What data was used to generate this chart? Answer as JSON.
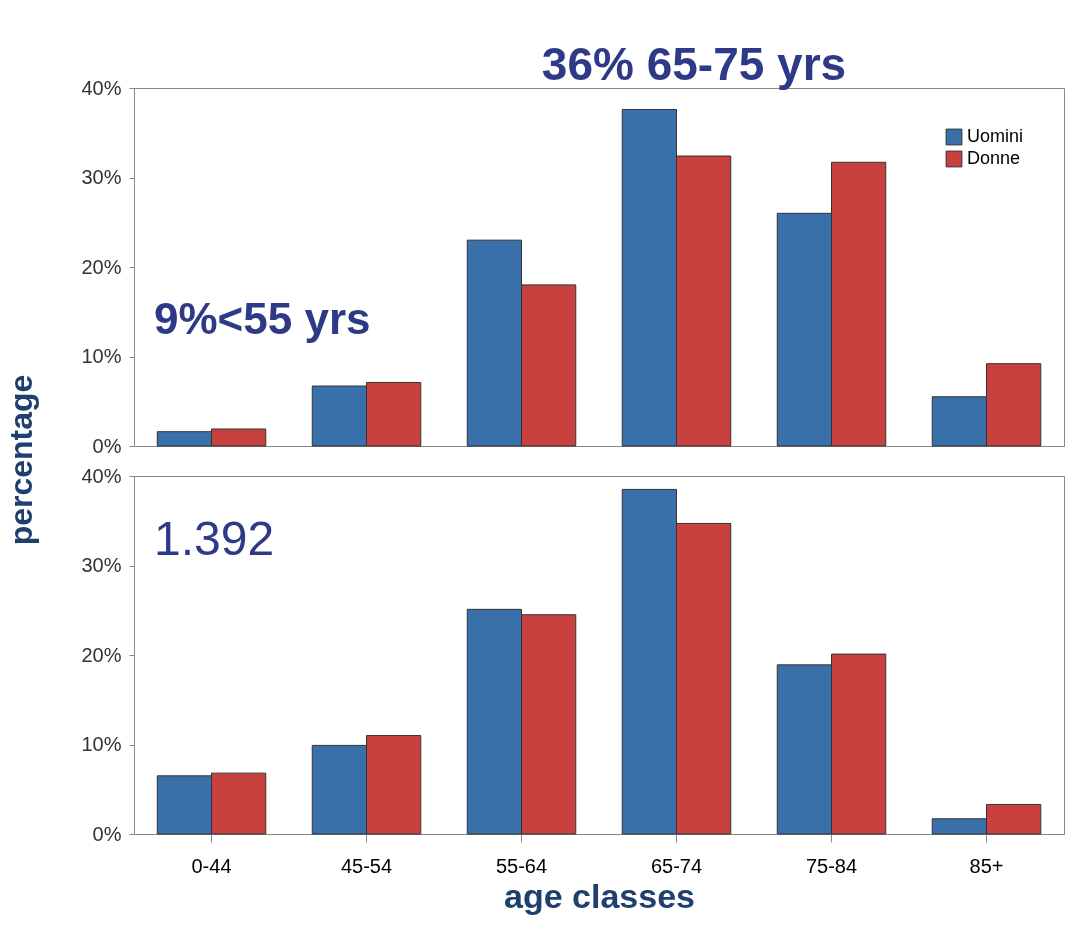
{
  "chart_data": [
    {
      "type": "bar",
      "categories": [
        null,
        null,
        null,
        null,
        null,
        null
      ],
      "ylabel": "percentage",
      "series": [
        {
          "name": "Uomini",
          "color": "#3a70aa",
          "values": [
            1.6,
            6.7,
            23.0,
            37.6,
            26.0,
            5.5
          ]
        },
        {
          "name": "Donne",
          "color": "#c9413f",
          "values": [
            1.9,
            7.1,
            18.0,
            32.4,
            31.7,
            9.2
          ]
        }
      ],
      "ylim": [
        0,
        40
      ],
      "yticks": [
        {
          "value": 0,
          "label": "0%"
        },
        {
          "value": 10,
          "label": "10%"
        },
        {
          "value": 20,
          "label": "20%"
        },
        {
          "value": 30,
          "label": "30%"
        },
        {
          "value": 40,
          "label": "40%"
        }
      ],
      "tick_labels": "y",
      "grid": false,
      "legend": "top right",
      "annotations": [
        "36% 65-75 yrs",
        "9%<55 yrs"
      ]
    },
    {
      "type": "bar",
      "categories": [
        "0-44",
        "45-54",
        "55-64",
        "65-74",
        "75-84",
        "85+"
      ],
      "xlabel": "age classes",
      "series": [
        {
          "color": "#3a70aa",
          "values": [
            6.5,
            9.9,
            25.1,
            38.5,
            18.9,
            1.7
          ]
        },
        {
          "color": "#c9413f",
          "values": [
            6.8,
            11.0,
            24.5,
            34.7,
            20.1,
            3.3
          ]
        }
      ],
      "ylim": [
        0,
        40
      ],
      "yticks": [
        {
          "value": 0,
          "label": "0%"
        },
        {
          "value": 10,
          "label": "10%"
        },
        {
          "value": 20,
          "label": "20%"
        },
        {
          "value": 30,
          "label": "30%"
        },
        {
          "value": 40,
          "label": "40%"
        }
      ],
      "grid": false,
      "legend": false,
      "annotations": [
        "1.392"
      ]
    }
  ]
}
